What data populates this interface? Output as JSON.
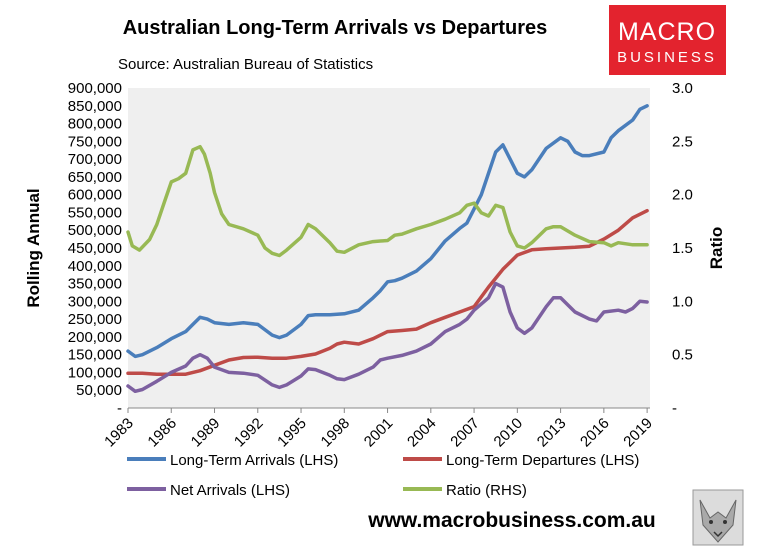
{
  "title": "Australian Long-Term Arrivals vs Departures",
  "source": "Source: Australian Bureau of Statistics",
  "website": "www.macrobusiness.com.au",
  "logo": {
    "line1": "MACRO",
    "line2": "BUSINESS",
    "color": "#e3232e"
  },
  "colors": {
    "plot_bg": "#efefef",
    "arrivals": "#4a7ebb",
    "departures": "#be4b48",
    "net": "#7d60a0",
    "ratio": "#98b954"
  },
  "chart_data": {
    "type": "line",
    "title": "Australian Long-Term Arrivals vs Departures",
    "ylabel_left": "Rolling Annual",
    "ylabel_right": "Ratio",
    "xlim": [
      1983,
      2019.2
    ],
    "ylim_left": [
      0,
      900000
    ],
    "ylim_right": [
      0,
      3.0
    ],
    "x_tick_labels": [
      "1983",
      "1986",
      "1989",
      "1992",
      "1995",
      "1998",
      "2001",
      "2004",
      "2007",
      "2010",
      "2013",
      "2016",
      "2019"
    ],
    "y_left_tick_labels": [
      "-",
      "50,000",
      "100,000",
      "150,000",
      "200,000",
      "250,000",
      "300,000",
      "350,000",
      "400,000",
      "450,000",
      "500,000",
      "550,000",
      "600,000",
      "650,000",
      "700,000",
      "750,000",
      "800,000",
      "850,000",
      "900,000"
    ],
    "y_right_tick_labels": [
      "-",
      "0.5",
      "1.0",
      "1.5",
      "2.0",
      "2.5",
      "3.0"
    ],
    "legend": "bottom, two columns",
    "series": [
      {
        "name": "Long-Term Arrivals (LHS)",
        "axis": "left",
        "color_key": "arrivals",
        "points": [
          [
            1983,
            160000
          ],
          [
            1983.5,
            145000
          ],
          [
            1984,
            150000
          ],
          [
            1985,
            170000
          ],
          [
            1986,
            195000
          ],
          [
            1987,
            215000
          ],
          [
            1987.5,
            235000
          ],
          [
            1988,
            255000
          ],
          [
            1988.5,
            250000
          ],
          [
            1989,
            240000
          ],
          [
            1990,
            235000
          ],
          [
            1991,
            240000
          ],
          [
            1992,
            235000
          ],
          [
            1993,
            205000
          ],
          [
            1993.5,
            198000
          ],
          [
            1994,
            205000
          ],
          [
            1995,
            235000
          ],
          [
            1995.5,
            260000
          ],
          [
            1996,
            262000
          ],
          [
            1997,
            262000
          ],
          [
            1998,
            265000
          ],
          [
            1999,
            275000
          ],
          [
            2000,
            310000
          ],
          [
            2000.5,
            330000
          ],
          [
            2001,
            355000
          ],
          [
            2001.5,
            358000
          ],
          [
            2002,
            365000
          ],
          [
            2003,
            385000
          ],
          [
            2004,
            420000
          ],
          [
            2005,
            470000
          ],
          [
            2006,
            505000
          ],
          [
            2006.5,
            520000
          ],
          [
            2007,
            560000
          ],
          [
            2007.5,
            600000
          ],
          [
            2008,
            660000
          ],
          [
            2008.5,
            720000
          ],
          [
            2009,
            740000
          ],
          [
            2009.5,
            700000
          ],
          [
            2010,
            660000
          ],
          [
            2010.5,
            650000
          ],
          [
            2011,
            670000
          ],
          [
            2012,
            730000
          ],
          [
            2013,
            760000
          ],
          [
            2013.5,
            750000
          ],
          [
            2014,
            720000
          ],
          [
            2014.5,
            710000
          ],
          [
            2015,
            710000
          ],
          [
            2016,
            720000
          ],
          [
            2016.5,
            760000
          ],
          [
            2017,
            780000
          ],
          [
            2018,
            810000
          ],
          [
            2018.5,
            840000
          ],
          [
            2019,
            850000
          ]
        ]
      },
      {
        "name": "Long-Term Departures (LHS)",
        "axis": "left",
        "color_key": "departures",
        "points": [
          [
            1983,
            98000
          ],
          [
            1984,
            98000
          ],
          [
            1985,
            95000
          ],
          [
            1986,
            95000
          ],
          [
            1987,
            95000
          ],
          [
            1988,
            105000
          ],
          [
            1989,
            120000
          ],
          [
            1990,
            135000
          ],
          [
            1991,
            142000
          ],
          [
            1992,
            143000
          ],
          [
            1993,
            140000
          ],
          [
            1994,
            140000
          ],
          [
            1995,
            145000
          ],
          [
            1996,
            152000
          ],
          [
            1997,
            168000
          ],
          [
            1997.5,
            180000
          ],
          [
            1998,
            185000
          ],
          [
            1999,
            180000
          ],
          [
            2000,
            195000
          ],
          [
            2001,
            215000
          ],
          [
            2002,
            218000
          ],
          [
            2003,
            222000
          ],
          [
            2004,
            240000
          ],
          [
            2005,
            255000
          ],
          [
            2006,
            270000
          ],
          [
            2007,
            285000
          ],
          [
            2008,
            340000
          ],
          [
            2009,
            390000
          ],
          [
            2009.5,
            410000
          ],
          [
            2010,
            430000
          ],
          [
            2011,
            445000
          ],
          [
            2012,
            448000
          ],
          [
            2013,
            450000
          ],
          [
            2014,
            452000
          ],
          [
            2015,
            455000
          ],
          [
            2016,
            475000
          ],
          [
            2017,
            500000
          ],
          [
            2018,
            535000
          ],
          [
            2019,
            555000
          ]
        ]
      },
      {
        "name": "Net Arrivals (LHS)",
        "axis": "left",
        "color_key": "net",
        "points": [
          [
            1983,
            62000
          ],
          [
            1983.5,
            47000
          ],
          [
            1984,
            52000
          ],
          [
            1985,
            75000
          ],
          [
            1986,
            100000
          ],
          [
            1987,
            118000
          ],
          [
            1987.5,
            140000
          ],
          [
            1988,
            150000
          ],
          [
            1988.5,
            140000
          ],
          [
            1989,
            115000
          ],
          [
            1990,
            100000
          ],
          [
            1991,
            98000
          ],
          [
            1992,
            92000
          ],
          [
            1993,
            65000
          ],
          [
            1993.5,
            58000
          ],
          [
            1994,
            65000
          ],
          [
            1995,
            90000
          ],
          [
            1995.5,
            110000
          ],
          [
            1996,
            108000
          ],
          [
            1997,
            92000
          ],
          [
            1997.5,
            82000
          ],
          [
            1998,
            80000
          ],
          [
            1999,
            95000
          ],
          [
            2000,
            115000
          ],
          [
            2000.5,
            135000
          ],
          [
            2001,
            140000
          ],
          [
            2002,
            148000
          ],
          [
            2003,
            160000
          ],
          [
            2004,
            180000
          ],
          [
            2005,
            215000
          ],
          [
            2006,
            235000
          ],
          [
            2006.5,
            250000
          ],
          [
            2007,
            275000
          ],
          [
            2008,
            310000
          ],
          [
            2008.5,
            350000
          ],
          [
            2009,
            340000
          ],
          [
            2009.5,
            270000
          ],
          [
            2010,
            225000
          ],
          [
            2010.5,
            210000
          ],
          [
            2011,
            225000
          ],
          [
            2012,
            285000
          ],
          [
            2012.5,
            310000
          ],
          [
            2013,
            310000
          ],
          [
            2014,
            270000
          ],
          [
            2015,
            250000
          ],
          [
            2015.5,
            245000
          ],
          [
            2016,
            270000
          ],
          [
            2017,
            275000
          ],
          [
            2017.5,
            270000
          ],
          [
            2018,
            280000
          ],
          [
            2018.5,
            300000
          ],
          [
            2019,
            298000
          ]
        ]
      },
      {
        "name": "Ratio (RHS)",
        "axis": "right",
        "color_key": "ratio",
        "points": [
          [
            1983,
            1.65
          ],
          [
            1983.3,
            1.52
          ],
          [
            1983.8,
            1.48
          ],
          [
            1984.5,
            1.58
          ],
          [
            1985,
            1.72
          ],
          [
            1985.5,
            1.92
          ],
          [
            1986,
            2.12
          ],
          [
            1986.5,
            2.15
          ],
          [
            1987,
            2.2
          ],
          [
            1987.5,
            2.42
          ],
          [
            1988,
            2.45
          ],
          [
            1988.3,
            2.38
          ],
          [
            1988.7,
            2.2
          ],
          [
            1989,
            2.02
          ],
          [
            1989.5,
            1.82
          ],
          [
            1990,
            1.72
          ],
          [
            1991,
            1.68
          ],
          [
            1992,
            1.62
          ],
          [
            1992.5,
            1.5
          ],
          [
            1993,
            1.45
          ],
          [
            1993.5,
            1.43
          ],
          [
            1994,
            1.48
          ],
          [
            1995,
            1.6
          ],
          [
            1995.5,
            1.72
          ],
          [
            1996,
            1.68
          ],
          [
            1997,
            1.55
          ],
          [
            1997.5,
            1.47
          ],
          [
            1998,
            1.46
          ],
          [
            1999,
            1.53
          ],
          [
            2000,
            1.56
          ],
          [
            2001,
            1.57
          ],
          [
            2001.5,
            1.62
          ],
          [
            2002,
            1.63
          ],
          [
            2003,
            1.68
          ],
          [
            2004,
            1.72
          ],
          [
            2005,
            1.77
          ],
          [
            2006,
            1.83
          ],
          [
            2006.5,
            1.9
          ],
          [
            2007,
            1.92
          ],
          [
            2007.5,
            1.83
          ],
          [
            2008,
            1.8
          ],
          [
            2008.5,
            1.9
          ],
          [
            2009,
            1.88
          ],
          [
            2009.5,
            1.65
          ],
          [
            2010,
            1.52
          ],
          [
            2010.5,
            1.5
          ],
          [
            2011,
            1.55
          ],
          [
            2012,
            1.68
          ],
          [
            2012.5,
            1.7
          ],
          [
            2013,
            1.7
          ],
          [
            2014,
            1.62
          ],
          [
            2015,
            1.56
          ],
          [
            2016,
            1.55
          ],
          [
            2016.5,
            1.52
          ],
          [
            2017,
            1.55
          ],
          [
            2018,
            1.53
          ],
          [
            2019,
            1.53
          ]
        ]
      }
    ]
  }
}
